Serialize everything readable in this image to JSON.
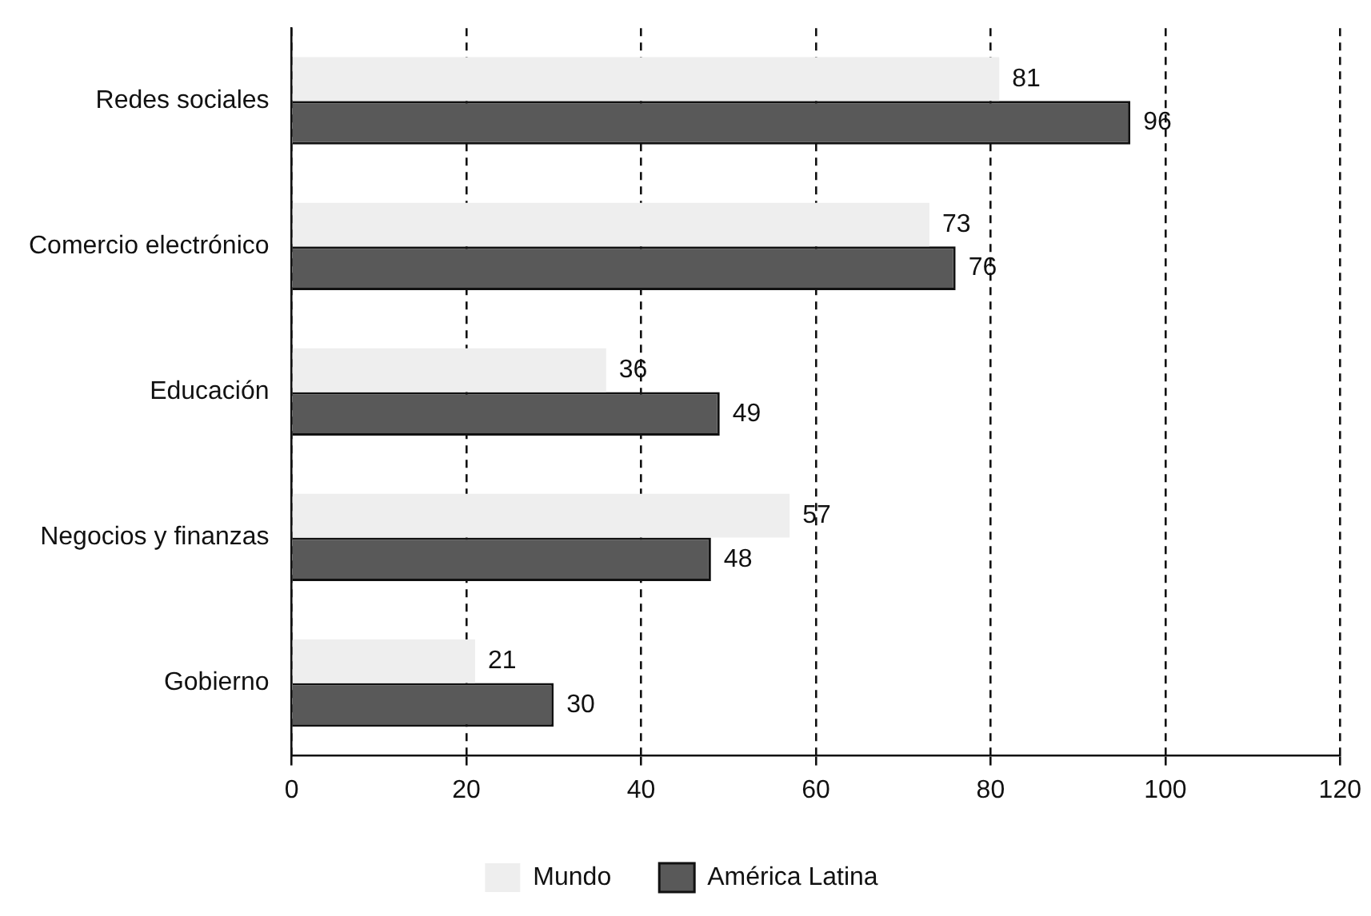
{
  "chart_data": {
    "type": "bar",
    "orientation": "horizontal",
    "categories": [
      "Redes sociales",
      "Comercio electrónico",
      "Educación",
      "Negocios y finanzas",
      "Gobierno"
    ],
    "series": [
      {
        "name": "Mundo",
        "color": "#eeeeee",
        "values": [
          81,
          73,
          36,
          57,
          21
        ]
      },
      {
        "name": "América Latina",
        "color": "#595959",
        "values": [
          96,
          76,
          49,
          48,
          30
        ]
      }
    ],
    "xlim": [
      0,
      120
    ],
    "xticks": [
      0,
      20,
      40,
      60,
      80,
      100,
      120
    ],
    "grid": "x",
    "line_style": "dashed",
    "legend": "bottom",
    "data_labels": true
  }
}
